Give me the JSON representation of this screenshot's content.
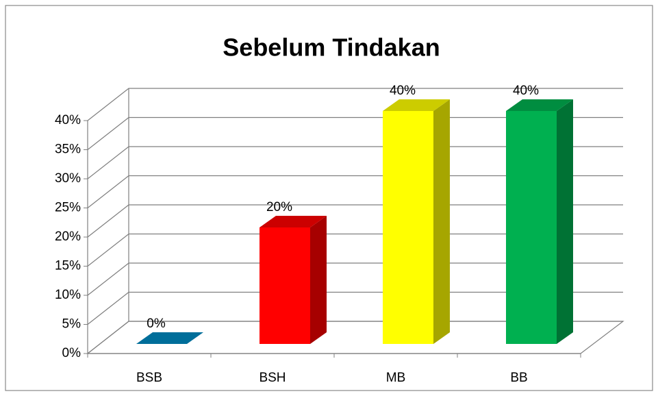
{
  "chart_data": {
    "type": "bar3d",
    "title": "Sebelum Tindakan",
    "categories": [
      "BSB",
      "BSH",
      "MB",
      "BB"
    ],
    "values": [
      0,
      20,
      40,
      40
    ],
    "value_labels": [
      "0%",
      "20%",
      "40%",
      "40%"
    ],
    "colors": [
      "#0089c0",
      "#ff0000",
      "#ffff00",
      "#00b050"
    ],
    "ylim": [
      0,
      40
    ],
    "yticks": [
      {
        "value": 0,
        "label": "0%"
      },
      {
        "value": 5,
        "label": "5%"
      },
      {
        "value": 10,
        "label": "10%"
      },
      {
        "value": 15,
        "label": "15%"
      },
      {
        "value": 20,
        "label": "20%"
      },
      {
        "value": 25,
        "label": "25%"
      },
      {
        "value": 30,
        "label": "30%"
      },
      {
        "value": 35,
        "label": "35%"
      },
      {
        "value": 40,
        "label": "40%"
      }
    ],
    "grid": true
  }
}
